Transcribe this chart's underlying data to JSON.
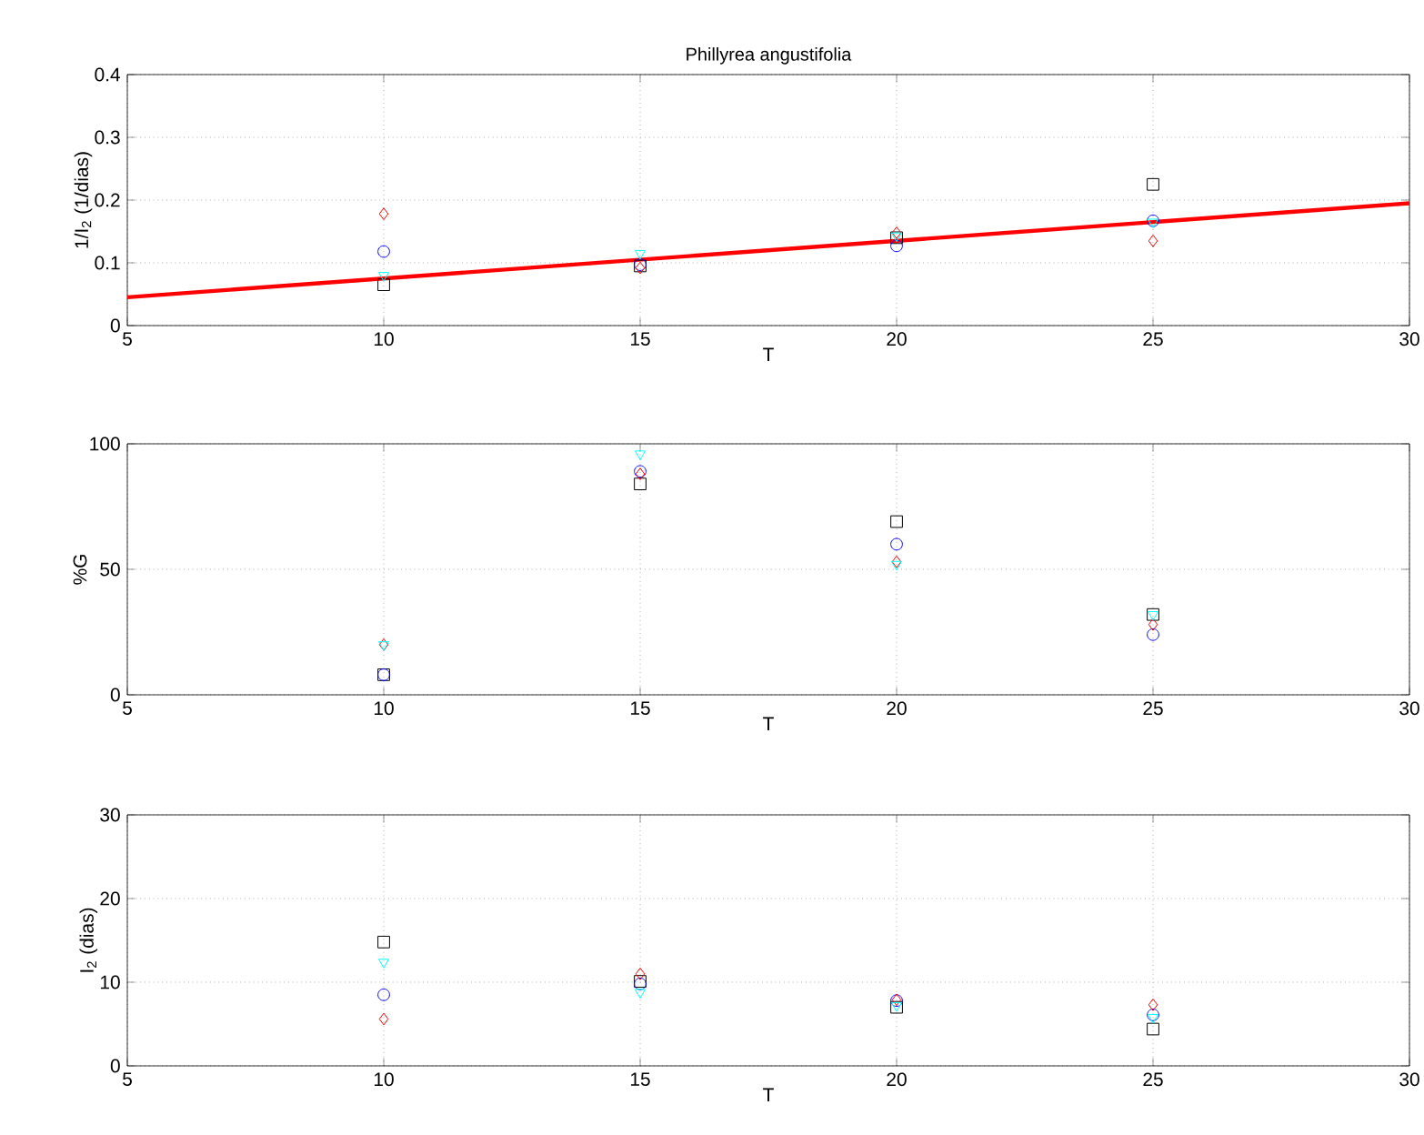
{
  "chart_data": [
    {
      "type": "scatter",
      "title": "Phillyrea angustifolia",
      "xlabel": "T",
      "ylabel": "1/I$_{2}$ (1/dias)",
      "xlim": [
        5,
        30
      ],
      "xticks": [
        5,
        10,
        15,
        20,
        25,
        30
      ],
      "ylim": [
        0,
        0.4
      ],
      "yticks": [
        0,
        0.1,
        0.2,
        0.3,
        0.4
      ],
      "grid": true,
      "series": [
        {
          "color": "#000000",
          "marker": "square",
          "x": [
            10,
            15,
            20,
            25
          ],
          "values": [
            0.065,
            0.095,
            0.14,
            0.225
          ]
        },
        {
          "color": "#0000ff",
          "marker": "circle",
          "x": [
            10,
            15,
            20,
            25
          ],
          "values": [
            0.118,
            0.097,
            0.127,
            0.167
          ]
        },
        {
          "color": "#ff0000",
          "marker": "diamond",
          "x": [
            10,
            15,
            20,
            25
          ],
          "values": [
            0.178,
            0.092,
            0.148,
            0.135
          ]
        },
        {
          "color": "#00ffff",
          "marker": "triangle",
          "x": [
            10,
            15,
            20,
            25
          ],
          "values": [
            0.08,
            0.115,
            0.143,
            0.165
          ]
        },
        {
          "type": "line",
          "color": "#ff0000",
          "marker": "none",
          "line_style": "solid",
          "x": [
            5,
            30
          ],
          "values": [
            0.045,
            0.195
          ]
        }
      ]
    },
    {
      "type": "scatter",
      "xlabel": "T",
      "ylabel": "%G",
      "xlim": [
        5,
        30
      ],
      "xticks": [
        5,
        10,
        15,
        20,
        25,
        30
      ],
      "ylim": [
        0,
        100
      ],
      "yticks": [
        0,
        50,
        100
      ],
      "grid": true,
      "series": [
        {
          "color": "#000000",
          "marker": "square",
          "x": [
            10,
            15,
            20,
            25
          ],
          "values": [
            8,
            84,
            69,
            32
          ]
        },
        {
          "color": "#0000ff",
          "marker": "circle",
          "x": [
            10,
            15,
            20,
            25
          ],
          "values": [
            8,
            89,
            60,
            24
          ]
        },
        {
          "color": "#ff0000",
          "marker": "diamond",
          "x": [
            10,
            15,
            20,
            25
          ],
          "values": [
            20,
            88,
            53,
            28
          ]
        },
        {
          "color": "#00ffff",
          "marker": "triangle",
          "x": [
            10,
            15,
            20,
            25
          ],
          "values": [
            20,
            96,
            52,
            32
          ]
        }
      ]
    },
    {
      "type": "scatter",
      "xlabel": "T",
      "ylabel": "I$_{2}$ (dias)",
      "xlim": [
        5,
        30
      ],
      "xticks": [
        5,
        10,
        15,
        20,
        25,
        30
      ],
      "ylim": [
        0,
        30
      ],
      "yticks": [
        0,
        10,
        20,
        30
      ],
      "grid": true,
      "series": [
        {
          "color": "#000000",
          "marker": "square",
          "x": [
            10,
            15,
            20,
            25
          ],
          "values": [
            14.8,
            10.1,
            7,
            4.4
          ]
        },
        {
          "color": "#0000ff",
          "marker": "circle",
          "x": [
            10,
            15,
            20,
            25
          ],
          "values": [
            8.5,
            9.8,
            7.8,
            6.1
          ]
        },
        {
          "color": "#ff0000",
          "marker": "diamond",
          "x": [
            10,
            15,
            20,
            25
          ],
          "values": [
            5.6,
            11,
            7.9,
            7.3
          ]
        },
        {
          "color": "#00ffff",
          "marker": "triangle",
          "x": [
            10,
            15,
            20,
            25
          ],
          "values": [
            12.4,
            8.8,
            7.2,
            5.8
          ]
        }
      ]
    }
  ]
}
